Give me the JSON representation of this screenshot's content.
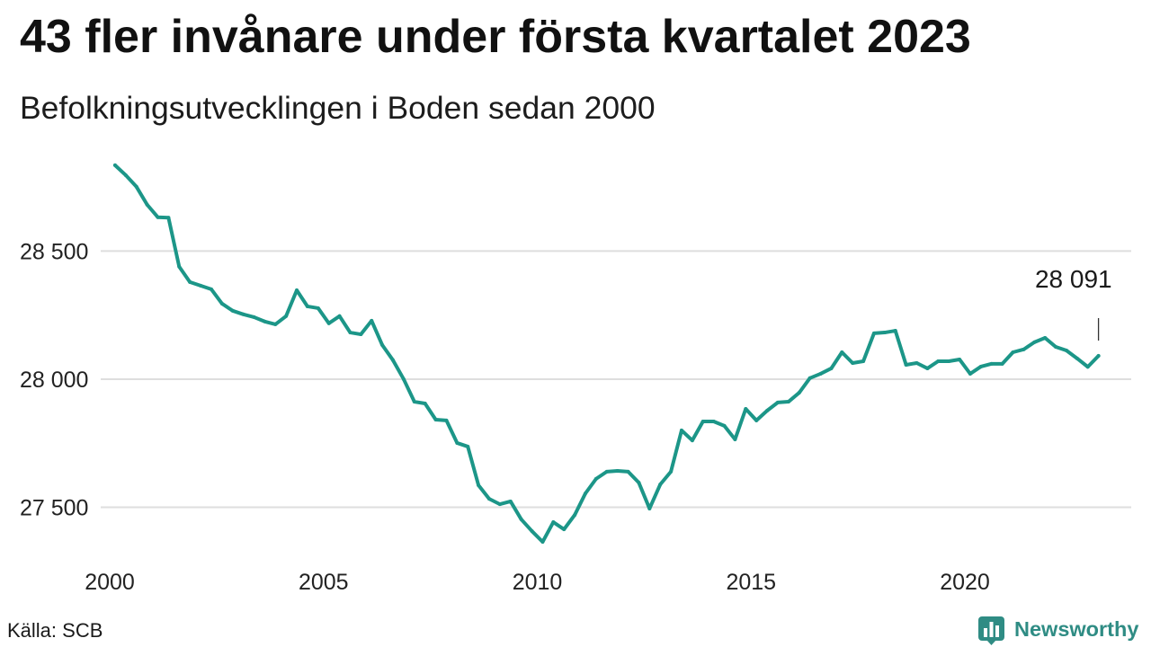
{
  "chart_data": {
    "type": "line",
    "title": "43 fler invånare under första kvartalet 2023",
    "subtitle": "Befolkningsutvecklingen i Boden sedan 2000",
    "x": [
      "2000-Q1",
      "2000-Q2",
      "2000-Q3",
      "2000-Q4",
      "2001-Q1",
      "2001-Q2",
      "2001-Q3",
      "2001-Q4",
      "2002-Q1",
      "2002-Q2",
      "2002-Q3",
      "2002-Q4",
      "2003-Q1",
      "2003-Q2",
      "2003-Q3",
      "2003-Q4",
      "2004-Q1",
      "2004-Q2",
      "2004-Q3",
      "2004-Q4",
      "2005-Q1",
      "2005-Q2",
      "2005-Q3",
      "2005-Q4",
      "2006-Q1",
      "2006-Q2",
      "2006-Q3",
      "2006-Q4",
      "2007-Q1",
      "2007-Q2",
      "2007-Q3",
      "2007-Q4",
      "2008-Q1",
      "2008-Q2",
      "2008-Q3",
      "2008-Q4",
      "2009-Q1",
      "2009-Q2",
      "2009-Q3",
      "2009-Q4",
      "2010-Q1",
      "2010-Q2",
      "2010-Q3",
      "2010-Q4",
      "2011-Q1",
      "2011-Q2",
      "2011-Q3",
      "2011-Q4",
      "2012-Q1",
      "2012-Q2",
      "2012-Q3",
      "2012-Q4",
      "2013-Q1",
      "2013-Q2",
      "2013-Q3",
      "2013-Q4",
      "2014-Q1",
      "2014-Q2",
      "2014-Q3",
      "2014-Q4",
      "2015-Q1",
      "2015-Q2",
      "2015-Q3",
      "2015-Q4",
      "2016-Q1",
      "2016-Q2",
      "2016-Q3",
      "2016-Q4",
      "2017-Q1",
      "2017-Q2",
      "2017-Q3",
      "2017-Q4",
      "2018-Q1",
      "2018-Q2",
      "2018-Q3",
      "2018-Q4",
      "2019-Q1",
      "2019-Q2",
      "2019-Q3",
      "2019-Q4",
      "2020-Q1",
      "2020-Q2",
      "2020-Q3",
      "2020-Q4",
      "2021-Q1",
      "2021-Q2",
      "2021-Q3",
      "2021-Q4",
      "2022-Q1",
      "2022-Q2",
      "2022-Q3",
      "2022-Q4",
      "2023-Q1"
    ],
    "series": [
      {
        "values": [
          28835,
          28796,
          28751,
          28681,
          28632,
          28630,
          28439,
          28379,
          28365,
          28351,
          28295,
          28267,
          28253,
          28242,
          28225,
          28214,
          28246,
          28347,
          28284,
          28277,
          28218,
          28246,
          28182,
          28175,
          28228,
          28133,
          28074,
          28000,
          27912,
          27905,
          27842,
          27839,
          27751,
          27737,
          27586,
          27533,
          27512,
          27523,
          27453,
          27407,
          27365,
          27442,
          27414,
          27470,
          27554,
          27611,
          27639,
          27642,
          27639,
          27596,
          27495,
          27589,
          27639,
          27800,
          27761,
          27835,
          27835,
          27818,
          27765,
          27884,
          27839,
          27877,
          27909,
          27912,
          27947,
          28004,
          28021,
          28042,
          28105,
          28063,
          28070,
          28179,
          28182,
          28189,
          28056,
          28063,
          28042,
          28070,
          28070,
          28077,
          28021,
          28049,
          28060,
          28060,
          28105,
          28116,
          28144,
          28161,
          28126,
          28112,
          28081,
          28048,
          28091
        ]
      }
    ],
    "xticks": [
      "2000",
      "2005",
      "2010",
      "2015",
      "2020"
    ],
    "yticks": [
      27500,
      28000,
      28500
    ],
    "ytick_labels": [
      "27 500",
      "28 000",
      "28 500"
    ],
    "xlim": [
      "2000-Q1",
      "2023-Q1"
    ],
    "ylim": [
      27330,
      28880
    ],
    "grid": "horizontal",
    "legend": "none",
    "annotations": [
      {
        "x": "2023-Q1",
        "y": 28091,
        "label": "28 091"
      }
    ]
  },
  "footer": {
    "source": "Källa: SCB",
    "brand_name": "Newsworthy",
    "brand_icon": "newsworthy-bar-chart-icon"
  },
  "colors": {
    "line": "#1c9688",
    "grid": "#dedede",
    "text": "#151515",
    "annotation": "#333333",
    "brand": "#2f8c84"
  }
}
